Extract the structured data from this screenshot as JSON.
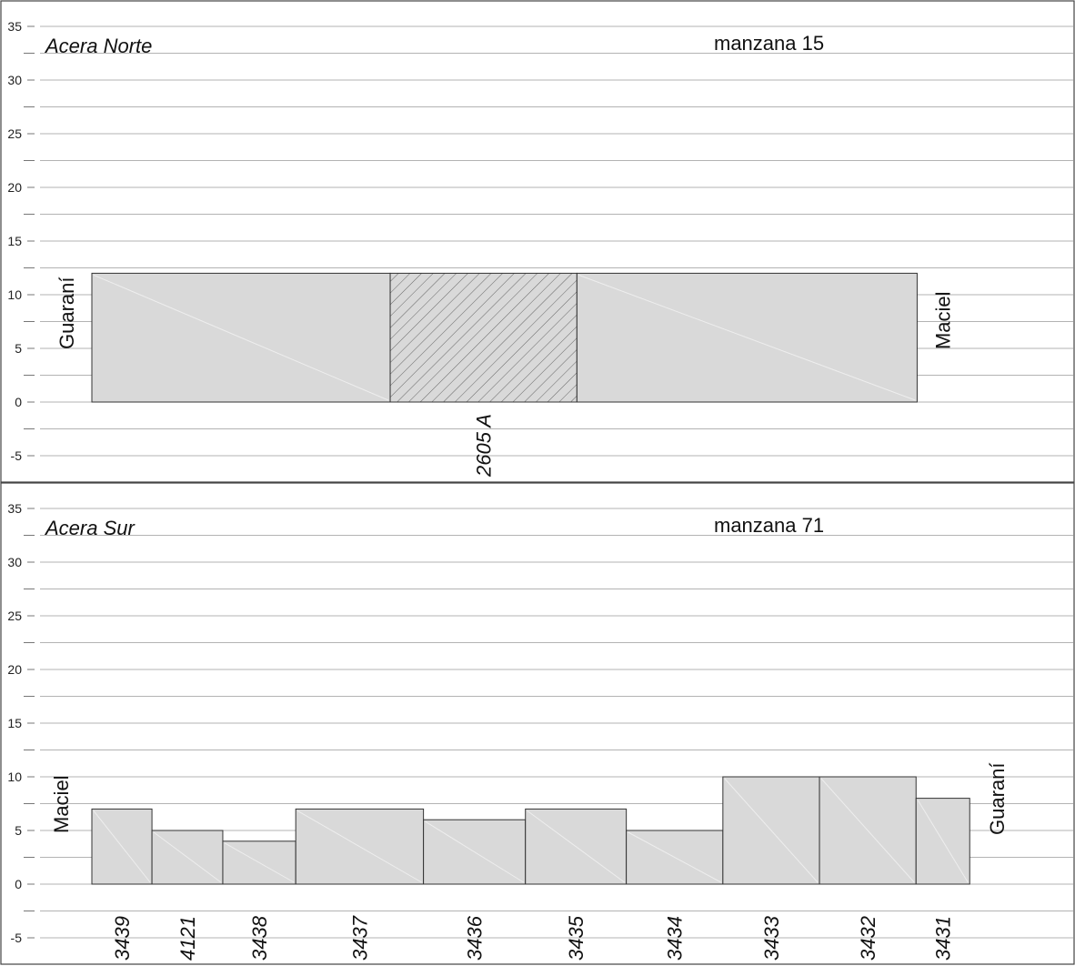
{
  "colors": {
    "lot_fill": "#d9d9d9",
    "lot_stroke": "#333333",
    "grid": "#9a9a9a",
    "frame": "#444444",
    "hatch": "#666666"
  },
  "chart_data": [
    {
      "type": "bar",
      "title": "Acera Norte",
      "subtitle": "manzana 15",
      "ylim": [
        -7,
        37
      ],
      "yticks": [
        "35",
        "30",
        "25",
        "20",
        "15",
        "10",
        "5",
        "0",
        "-5"
      ],
      "grid": true,
      "street_left": "Guaraní",
      "street_right": "Maciel",
      "lots": [
        {
          "label": "",
          "width": 27.8,
          "height": 12,
          "hatched": false
        },
        {
          "label": "2605 A",
          "width": 17.4,
          "height": 12,
          "hatched": true
        },
        {
          "label": "",
          "width": 31.7,
          "height": 12,
          "hatched": false
        }
      ]
    },
    {
      "type": "bar",
      "title": "Acera Sur",
      "subtitle": "manzana 71",
      "ylim": [
        -7,
        37
      ],
      "yticks": [
        "35",
        "30",
        "25",
        "20",
        "15",
        "10",
        "5",
        "0",
        "-5"
      ],
      "grid": true,
      "street_left": "Maciel",
      "street_right": "Guaraní",
      "lots": [
        {
          "label": "3439",
          "width": 5.6,
          "height": 7,
          "hatched": false
        },
        {
          "label": "4121",
          "width": 6.6,
          "height": 5,
          "hatched": false
        },
        {
          "label": "3438",
          "width": 6.8,
          "height": 4,
          "hatched": false
        },
        {
          "label": "3437",
          "width": 11.9,
          "height": 7,
          "hatched": false
        },
        {
          "label": "3436",
          "width": 9.5,
          "height": 6,
          "hatched": false
        },
        {
          "label": "3435",
          "width": 9.4,
          "height": 7,
          "hatched": false
        },
        {
          "label": "3434",
          "width": 9.0,
          "height": 5,
          "hatched": false
        },
        {
          "label": "3433",
          "width": 9.0,
          "height": 10,
          "hatched": false
        },
        {
          "label": "3432",
          "width": 9.0,
          "height": 10,
          "hatched": false
        },
        {
          "label": "3431",
          "width": 5.0,
          "height": 8,
          "hatched": false
        }
      ]
    }
  ]
}
